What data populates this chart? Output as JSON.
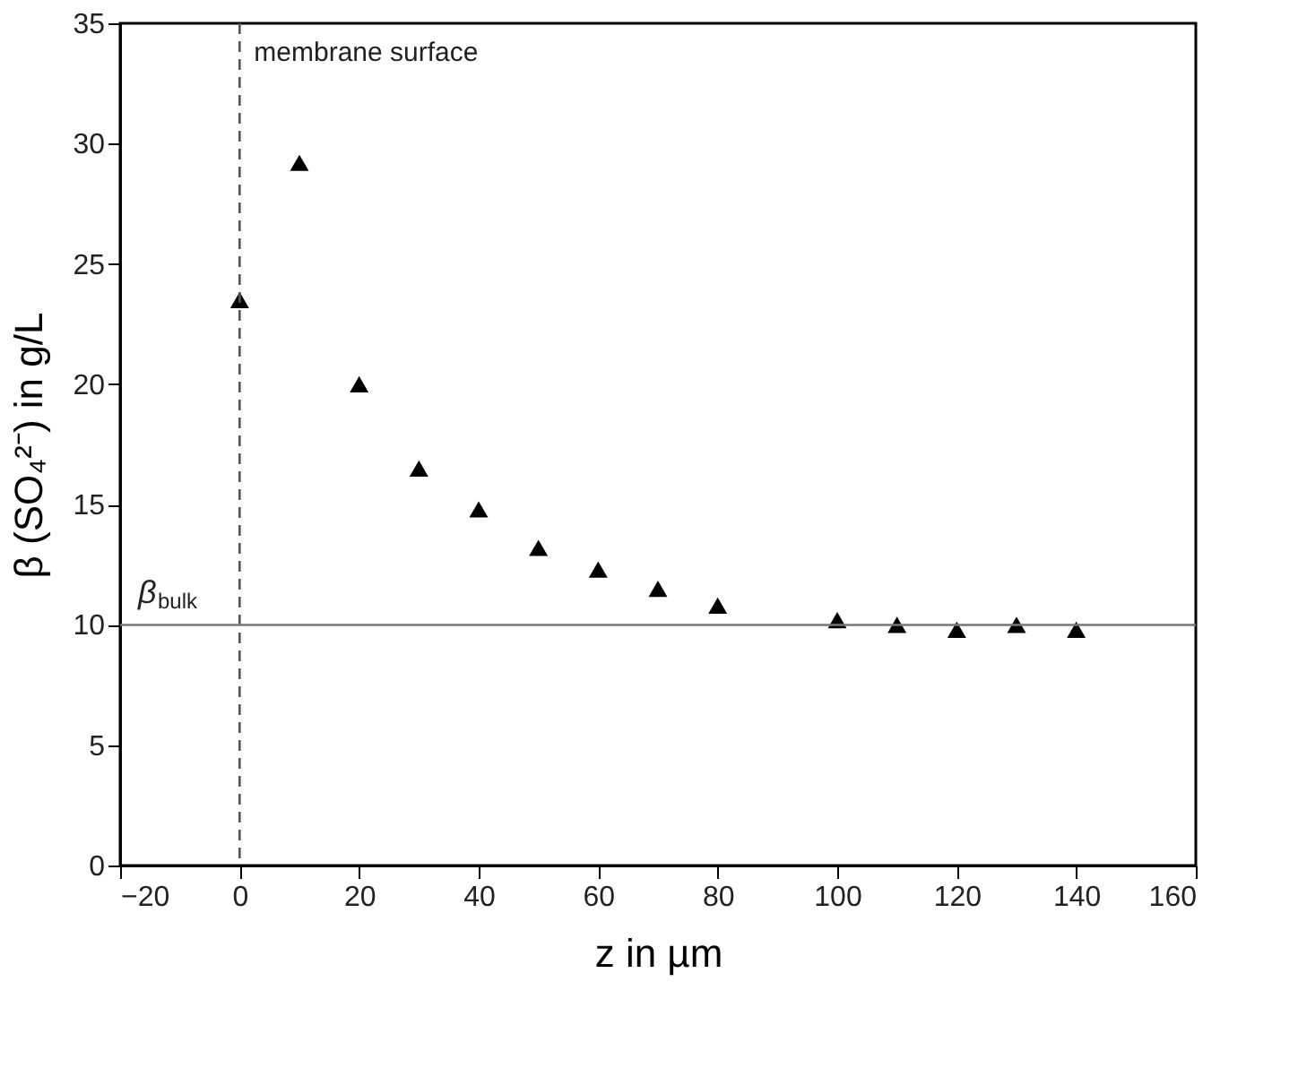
{
  "chart_data": {
    "type": "scatter",
    "xlabel": "z in µm",
    "ylabel": "β (SO₄²⁻) in g/L",
    "x": [
      0,
      10,
      20,
      30,
      40,
      50,
      60,
      70,
      80,
      100,
      110,
      120,
      130,
      140
    ],
    "series": [
      {
        "color": "#000000",
        "values": [
          23.5,
          29.2,
          20.0,
          16.5,
          14.8,
          13.2,
          12.3,
          11.5,
          10.8,
          10.2,
          10.0,
          9.8,
          10.0,
          9.8
        ]
      }
    ],
    "marker": "triangle",
    "xlim": [
      -20,
      160
    ],
    "xticks": [
      -20,
      0,
      20,
      40,
      60,
      80,
      100,
      120,
      140,
      160
    ],
    "ylim": [
      0,
      35
    ],
    "yticks": [
      0,
      5,
      10,
      15,
      20,
      25,
      30,
      35
    ],
    "grid": false,
    "ref_lines": [
      {
        "axis": "x",
        "value": 0,
        "label": "membrane surface",
        "line_style": "dashed",
        "color": "#555555"
      },
      {
        "axis": "y",
        "value": 10,
        "label": "β$_{bulk}$",
        "line_style": "solid",
        "color": "#777777"
      }
    ]
  }
}
